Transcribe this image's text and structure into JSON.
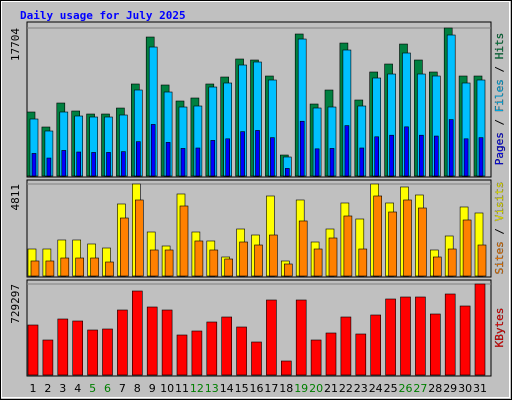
{
  "chart_data": [
    {
      "type": "bar",
      "title": "Daily usage for July 2025",
      "legend_separator": "/",
      "ylim": [
        0,
        17704
      ],
      "yticks": [
        17704
      ],
      "grid": true,
      "series": [
        {
          "name": "Hits",
          "color": "#008040",
          "values": [
            7655,
            5860,
            8730,
            7775,
            7415,
            7415,
            8130,
            11005,
            16625,
            10885,
            8970,
            9330,
            11005,
            11840,
            13995,
            13875,
            11960,
            2510,
            16985,
            8610,
            10285,
            15905,
            9090,
            12440,
            13395,
            15785,
            13875,
            12440,
            17704,
            11960,
            11960
          ]
        },
        {
          "name": "Files",
          "color": "#00c0ff",
          "values": [
            6817,
            5382,
            7654,
            7176,
            7056,
            7056,
            7296,
            10286,
            15428,
            10046,
            8252,
            8372,
            10644,
            11123,
            13276,
            13634,
            11482,
            2272,
            16385,
            8133,
            8252,
            15070,
            8372,
            11721,
            12199,
            14711,
            12199,
            11960,
            16864,
            11123,
            11482
          ]
        },
        {
          "name": "Pages",
          "color": "#0000ff",
          "values": [
            2700,
            2150,
            3060,
            2870,
            2820,
            2820,
            2920,
            4110,
            6170,
            4020,
            3300,
            3350,
            4260,
            4450,
            5310,
            5450,
            4590,
            910,
            6550,
            3250,
            3300,
            6030,
            3350,
            4690,
            4880,
            5880,
            4880,
            4780,
            6750,
            4450,
            4590
          ]
        }
      ]
    },
    {
      "type": "bar",
      "legend_separator": "/",
      "ylim": [
        0,
        4811
      ],
      "yticks": [
        4811
      ],
      "grid": true,
      "series": [
        {
          "name": "Visits",
          "color": "#ffff00",
          "values": [
            1412,
            1412,
            1883,
            1883,
            1674,
            1464,
            3766,
            4811,
            2301,
            1569,
            4289,
            2301,
            1831,
            994,
            2458,
            2144,
            4184,
            785,
            3975,
            1778,
            2458,
            3818,
            2981,
            4811,
            3818,
            4655,
            4236,
            1360,
            2092,
            3609,
            3295
          ]
        },
        {
          "name": "Sites",
          "color": "#ff8000",
          "values": [
            785,
            785,
            941,
            941,
            941,
            732,
            3033,
            3975,
            1360,
            1360,
            3661,
            1831,
            1360,
            889,
            1778,
            1621,
            2144,
            628,
            2877,
            1412,
            1987,
            3138,
            1412,
            4184,
            3347,
            3975,
            3556,
            994,
            1412,
            2929,
            1621
          ]
        }
      ]
    },
    {
      "type": "bar",
      "ylim": [
        0,
        729297
      ],
      "yticks": [
        729297
      ],
      "grid": true,
      "categories": [
        "1",
        "2",
        "3",
        "4",
        "5",
        "6",
        "7",
        "8",
        "9",
        "10",
        "11",
        "12",
        "13",
        "14",
        "15",
        "16",
        "17",
        "18",
        "19",
        "20",
        "21",
        "22",
        "23",
        "24",
        "25",
        "26",
        "27",
        "28",
        "29",
        "30",
        "31"
      ],
      "category_colors": [
        "#000000",
        "#000000",
        "#000000",
        "#000000",
        "#007f00",
        "#007f00",
        "#000000",
        "#000000",
        "#000000",
        "#000000",
        "#000000",
        "#007f00",
        "#007f00",
        "#000000",
        "#000000",
        "#000000",
        "#000000",
        "#000000",
        "#007f00",
        "#007f00",
        "#000000",
        "#000000",
        "#000000",
        "#000000",
        "#000000",
        "#007f00",
        "#007f00",
        "#000000",
        "#000000",
        "#000000",
        "#000000"
      ],
      "series": [
        {
          "name": "KBytes",
          "color": "#ff0000",
          "values": [
            400700,
            280490,
            448784,
            432756,
            360630,
            368644,
            520910,
            673176,
            544952,
            520910,
            320560,
            352616,
            424742,
            464812,
            384672,
            264462,
            601050,
            112196,
            601050,
            280490,
            336588,
            464812,
            328574,
            480840,
            609064,
            625092,
            625092,
            488854,
            649134,
            552966,
            729297
          ]
        }
      ]
    }
  ]
}
